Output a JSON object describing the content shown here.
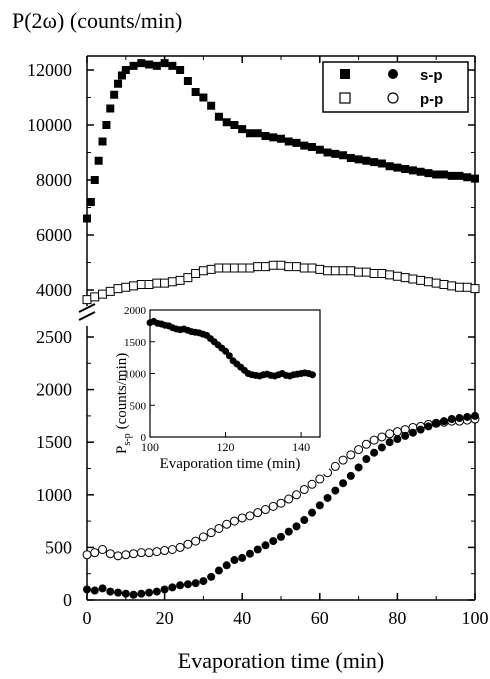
{
  "chart_data": [
    {
      "type": "scatter",
      "title": "",
      "ylabel": "P(2ω) (counts/min)",
      "xlabel": "Evaporation time (min)",
      "xlim": [
        0,
        100
      ],
      "xticks": [
        "0",
        "20",
        "40",
        "60",
        "80",
        "100"
      ],
      "y_axis_break": "broken axis between 2500 and 3500",
      "ylim_lower": [
        0,
        2700
      ],
      "ylim_upper": [
        3500,
        12800
      ],
      "yticks_lower": [
        "0",
        "500",
        "1000",
        "1500",
        "2000",
        "2500"
      ],
      "yticks_upper": [
        "4000",
        "6000",
        "8000",
        "10000",
        "12000"
      ],
      "grid": false,
      "legend_position": "top-right",
      "legend_rows": [
        {
          "label": "s-p",
          "markers": [
            "filled-square",
            "filled-circle"
          ]
        },
        {
          "label": "p-p",
          "markers": [
            "open-square",
            "open-circle"
          ]
        }
      ],
      "series": [
        {
          "name": "s-p",
          "marker": "filled-square",
          "segment": "upper",
          "x": [
            0,
            1,
            2,
            3,
            4,
            5,
            6,
            7,
            8,
            9,
            10,
            12,
            14,
            16,
            18,
            20,
            22,
            24,
            26,
            28,
            30,
            32,
            34,
            36,
            38,
            40,
            42,
            44,
            46,
            48,
            50,
            52,
            54,
            56,
            58,
            60,
            62,
            64,
            66,
            68,
            70,
            72,
            74,
            76,
            78,
            80,
            82,
            84,
            86,
            88,
            90,
            92,
            94,
            96,
            98,
            100
          ],
          "y": [
            6600,
            7200,
            8000,
            8700,
            9400,
            10000,
            10600,
            11100,
            11500,
            11800,
            12000,
            12150,
            12250,
            12200,
            12150,
            12250,
            12150,
            12000,
            11600,
            11200,
            11000,
            10700,
            10300,
            10100,
            10000,
            9850,
            9700,
            9700,
            9600,
            9550,
            9500,
            9400,
            9350,
            9250,
            9200,
            9100,
            9000,
            8950,
            8900,
            8800,
            8750,
            8700,
            8650,
            8600,
            8500,
            8450,
            8400,
            8350,
            8300,
            8250,
            8200,
            8200,
            8150,
            8150,
            8100,
            8050
          ]
        },
        {
          "name": "p-p",
          "marker": "open-square",
          "segment": "upper",
          "x": [
            0,
            2,
            4,
            6,
            8,
            10,
            12,
            14,
            16,
            18,
            20,
            22,
            24,
            26,
            28,
            30,
            32,
            34,
            36,
            38,
            40,
            42,
            44,
            46,
            48,
            50,
            52,
            54,
            56,
            58,
            60,
            62,
            64,
            66,
            68,
            70,
            72,
            74,
            76,
            78,
            80,
            82,
            84,
            86,
            88,
            90,
            92,
            94,
            96,
            98,
            100
          ],
          "y": [
            3650,
            3750,
            3850,
            3950,
            4050,
            4100,
            4150,
            4200,
            4200,
            4250,
            4250,
            4300,
            4350,
            4450,
            4600,
            4700,
            4750,
            4800,
            4800,
            4800,
            4800,
            4800,
            4850,
            4850,
            4900,
            4900,
            4850,
            4850,
            4800,
            4800,
            4750,
            4700,
            4700,
            4700,
            4700,
            4650,
            4650,
            4600,
            4600,
            4550,
            4500,
            4450,
            4400,
            4350,
            4300,
            4250,
            4200,
            4150,
            4100,
            4100,
            4050
          ]
        },
        {
          "name": "s-p",
          "marker": "filled-circle",
          "segment": "lower",
          "x": [
            0,
            2,
            4,
            6,
            8,
            10,
            12,
            14,
            16,
            18,
            20,
            22,
            24,
            26,
            28,
            30,
            32,
            34,
            36,
            38,
            40,
            42,
            44,
            46,
            48,
            50,
            52,
            54,
            56,
            58,
            60,
            62,
            64,
            66,
            68,
            70,
            72,
            74,
            76,
            78,
            80,
            82,
            84,
            86,
            88,
            90,
            92,
            94,
            96,
            98,
            100
          ],
          "y": [
            100,
            90,
            110,
            80,
            70,
            60,
            50,
            60,
            70,
            80,
            100,
            120,
            140,
            150,
            160,
            180,
            220,
            280,
            330,
            380,
            400,
            440,
            480,
            520,
            560,
            600,
            650,
            700,
            760,
            830,
            900,
            970,
            1040,
            1110,
            1180,
            1260,
            1340,
            1400,
            1450,
            1500,
            1530,
            1560,
            1590,
            1620,
            1650,
            1680,
            1700,
            1720,
            1730,
            1740,
            1750
          ]
        },
        {
          "name": "p-p",
          "marker": "open-circle",
          "segment": "lower",
          "x": [
            0,
            2,
            4,
            6,
            8,
            10,
            12,
            14,
            16,
            18,
            20,
            22,
            24,
            26,
            28,
            30,
            32,
            34,
            36,
            38,
            40,
            42,
            44,
            46,
            48,
            50,
            52,
            54,
            56,
            58,
            60,
            62,
            64,
            66,
            68,
            70,
            72,
            74,
            76,
            78,
            80,
            82,
            84,
            86,
            88,
            90,
            92,
            94,
            96,
            98,
            100
          ],
          "y": [
            430,
            450,
            480,
            440,
            420,
            430,
            440,
            450,
            450,
            460,
            470,
            480,
            500,
            530,
            560,
            600,
            640,
            680,
            720,
            750,
            780,
            800,
            830,
            860,
            890,
            920,
            960,
            1000,
            1050,
            1100,
            1150,
            1210,
            1270,
            1330,
            1380,
            1430,
            1480,
            1520,
            1550,
            1580,
            1600,
            1620,
            1640,
            1650,
            1670,
            1680,
            1690,
            1700,
            1700,
            1710,
            1720
          ]
        }
      ]
    },
    {
      "type": "scatter",
      "title": "",
      "xlabel": "Evaporation time (min)",
      "ylabel_main": "P",
      "ylabel_sub": "s-p",
      "ylabel_tail": "(counts/min)",
      "xlim": [
        100,
        145
      ],
      "ylim": [
        0,
        2000
      ],
      "xticks": [
        "100",
        "120",
        "140"
      ],
      "yticks": [
        "0",
        "500",
        "1000",
        "1500",
        "2000"
      ],
      "grid": false,
      "series": [
        {
          "name": "s-p",
          "marker": "filled-circle",
          "x": [
            100,
            101,
            102,
            103,
            104,
            105,
            106,
            107,
            108,
            109,
            110,
            111,
            112,
            113,
            114,
            115,
            116,
            117,
            118,
            119,
            120,
            121,
            122,
            123,
            124,
            125,
            126,
            127,
            128,
            129,
            130,
            131,
            132,
            133,
            134,
            135,
            136,
            137,
            138,
            139,
            140,
            141,
            142,
            143
          ],
          "y": [
            1800,
            1820,
            1790,
            1780,
            1760,
            1750,
            1720,
            1700,
            1690,
            1700,
            1680,
            1660,
            1650,
            1640,
            1620,
            1600,
            1550,
            1500,
            1450,
            1400,
            1350,
            1280,
            1200,
            1150,
            1100,
            1050,
            1000,
            980,
            970,
            960,
            980,
            990,
            970,
            960,
            980,
            1000,
            970,
            960,
            980,
            990,
            1000,
            1010,
            1000,
            980
          ]
        }
      ]
    }
  ]
}
